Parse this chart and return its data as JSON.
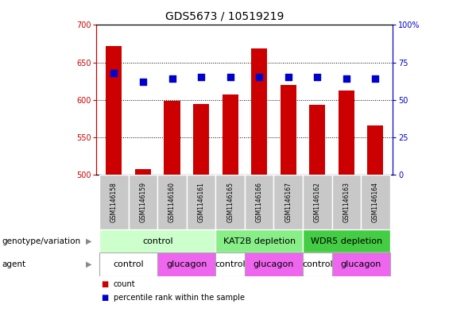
{
  "title": "GDS5673 / 10519219",
  "samples": [
    "GSM1146158",
    "GSM1146159",
    "GSM1146160",
    "GSM1146161",
    "GSM1146165",
    "GSM1146166",
    "GSM1146167",
    "GSM1146162",
    "GSM1146163",
    "GSM1146164"
  ],
  "counts": [
    672,
    508,
    599,
    594,
    607,
    669,
    620,
    593,
    612,
    566
  ],
  "percentiles": [
    68,
    62,
    64,
    65,
    65,
    65,
    65,
    65,
    64,
    64
  ],
  "ylim_left": [
    500,
    700
  ],
  "ylim_right": [
    0,
    100
  ],
  "yticks_left": [
    500,
    550,
    600,
    650,
    700
  ],
  "yticks_right": [
    0,
    25,
    50,
    75,
    100
  ],
  "bar_color": "#CC0000",
  "dot_color": "#0000CC",
  "bar_width": 0.55,
  "dot_size": 40,
  "genotype_groups": [
    {
      "label": "control",
      "start": 0,
      "end": 4,
      "color": "#CCFFCC"
    },
    {
      "label": "KAT2B depletion",
      "start": 4,
      "end": 7,
      "color": "#88EE88"
    },
    {
      "label": "WDR5 depletion",
      "start": 7,
      "end": 10,
      "color": "#44CC44"
    }
  ],
  "agent_groups": [
    {
      "label": "control",
      "start": 0,
      "end": 2,
      "color": "#FFFFFF"
    },
    {
      "label": "glucagon",
      "start": 2,
      "end": 4,
      "color": "#EE66EE"
    },
    {
      "label": "control",
      "start": 4,
      "end": 5,
      "color": "#FFFFFF"
    },
    {
      "label": "glucagon",
      "start": 5,
      "end": 7,
      "color": "#EE66EE"
    },
    {
      "label": "control",
      "start": 7,
      "end": 8,
      "color": "#FFFFFF"
    },
    {
      "label": "glucagon",
      "start": 8,
      "end": 10,
      "color": "#EE66EE"
    }
  ],
  "legend_count_color": "#CC0000",
  "legend_dot_color": "#0000CC",
  "genotype_row_label": "genotype/variation",
  "agent_row_label": "agent",
  "legend_count_label": "count",
  "legend_percentile_label": "percentile rank within the sample",
  "title_fontsize": 10,
  "tick_fontsize": 7,
  "label_fontsize": 7.5,
  "sample_fontsize": 5.5,
  "row_label_fontsize": 7.5,
  "row_content_fontsize": 8
}
